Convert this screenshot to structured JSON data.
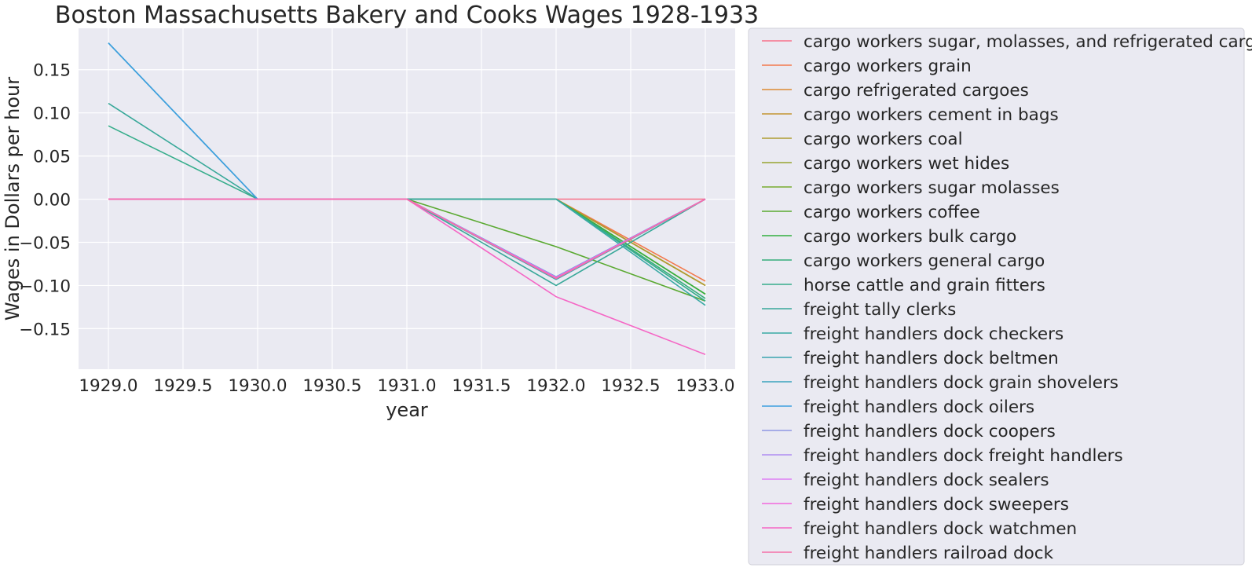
{
  "chart_data": {
    "type": "line",
    "title": "Boston Massachusetts Bakery and Cooks Wages 1928-1933",
    "xlabel": "year",
    "ylabel": "Wages in Dollars per hour",
    "xlim": [
      1928.8,
      1933.2
    ],
    "ylim": [
      -0.197,
      0.198
    ],
    "x_ticks": [
      1929.0,
      1929.5,
      1930.0,
      1930.5,
      1931.0,
      1931.5,
      1932.0,
      1932.5,
      1933.0
    ],
    "x_tick_labels": [
      "1929.0",
      "1929.5",
      "1930.0",
      "1930.5",
      "1931.0",
      "1931.5",
      "1932.0",
      "1932.5",
      "1933.0"
    ],
    "y_ticks": [
      -0.15,
      -0.1,
      -0.05,
      0.0,
      0.05,
      0.1,
      0.15
    ],
    "y_tick_labels": [
      "−0.15",
      "−0.10",
      "−0.05",
      "0.00",
      "0.05",
      "0.10",
      "0.15"
    ],
    "grid": true,
    "legend_position": "outside-right",
    "x": [
      1929,
      1930,
      1931,
      1932,
      1933
    ],
    "series": [
      {
        "name": "cargo workers sugar, molasses, and refrigerated cargoes",
        "color": "#f77189",
        "values": [
          0,
          0,
          0,
          0,
          0
        ]
      },
      {
        "name": "cargo workers grain",
        "color": "#f3794c",
        "values": [
          0,
          0,
          0,
          0,
          -0.095
        ]
      },
      {
        "name": "cargo refrigerated cargoes",
        "color": "#dc8932",
        "values": [
          0,
          0,
          0,
          0,
          -0.1
        ]
      },
      {
        "name": "cargo workers cement in bags",
        "color": "#c39532",
        "values": [
          0,
          0,
          0,
          0,
          -0.1
        ]
      },
      {
        "name": "cargo workers coal",
        "color": "#ae9d31",
        "values": [
          0,
          0,
          0,
          0,
          -0.1
        ]
      },
      {
        "name": "cargo workers wet hides",
        "color": "#97a431",
        "values": [
          0,
          0,
          0,
          0,
          -0.11
        ]
      },
      {
        "name": "cargo workers sugar molasses",
        "color": "#77ab31",
        "values": [
          0,
          0,
          0,
          0,
          -0.11
        ]
      },
      {
        "name": "cargo workers coffee",
        "color": "#5aa931",
        "values": [
          0,
          0,
          0,
          -0.055,
          -0.118
        ]
      },
      {
        "name": "cargo workers bulk cargo",
        "color": "#33b03f",
        "values": [
          0,
          0,
          0,
          0,
          -0.11
        ]
      },
      {
        "name": "cargo workers general cargo",
        "color": "#35ac7a",
        "values": [
          0,
          0,
          0,
          0,
          -0.115
        ]
      },
      {
        "name": "horse cattle and grain fitters",
        "color": "#36ad8b",
        "values": [
          0.085,
          0,
          0,
          0,
          -0.118
        ]
      },
      {
        "name": "freight tally clerks",
        "color": "#38a899",
        "values": [
          0.111,
          0,
          0,
          -0.1,
          0
        ]
      },
      {
        "name": "freight handlers dock checkers",
        "color": "#39a9a5",
        "values": [
          0,
          0,
          0,
          0,
          -0.123
        ]
      },
      {
        "name": "freight handlers dock beltmen",
        "color": "#3aa5b0",
        "values": [
          0,
          0,
          0,
          -0.093,
          0
        ]
      },
      {
        "name": "freight handlers dock grain shovelers",
        "color": "#3ba3bc",
        "values": [
          0.181,
          0,
          0,
          -0.09,
          0
        ]
      },
      {
        "name": "freight handlers dock oilers",
        "color": "#3d9fdf",
        "values": [
          0.181,
          0,
          0,
          -0.09,
          0
        ]
      },
      {
        "name": "freight handlers dock coopers",
        "color": "#8f97e3",
        "values": [
          0,
          0,
          0,
          -0.09,
          0
        ]
      },
      {
        "name": "freight handlers dock freight handlers",
        "color": "#b08cf2",
        "values": [
          0,
          0,
          0,
          -0.091,
          0
        ]
      },
      {
        "name": "freight handlers dock sealers",
        "color": "#de7ef5",
        "values": [
          0,
          0,
          0,
          -0.091,
          0
        ]
      },
      {
        "name": "freight handlers dock sweepers",
        "color": "#f167dd",
        "values": [
          0,
          0,
          0,
          -0.091,
          0
        ]
      },
      {
        "name": "freight handlers dock watchmen",
        "color": "#f566c5",
        "values": [
          0,
          0,
          0,
          -0.113,
          -0.18
        ]
      },
      {
        "name": "freight handlers railroad dock",
        "color": "#f56fa8",
        "values": [
          0,
          0,
          0,
          -0.092,
          0
        ]
      }
    ]
  }
}
